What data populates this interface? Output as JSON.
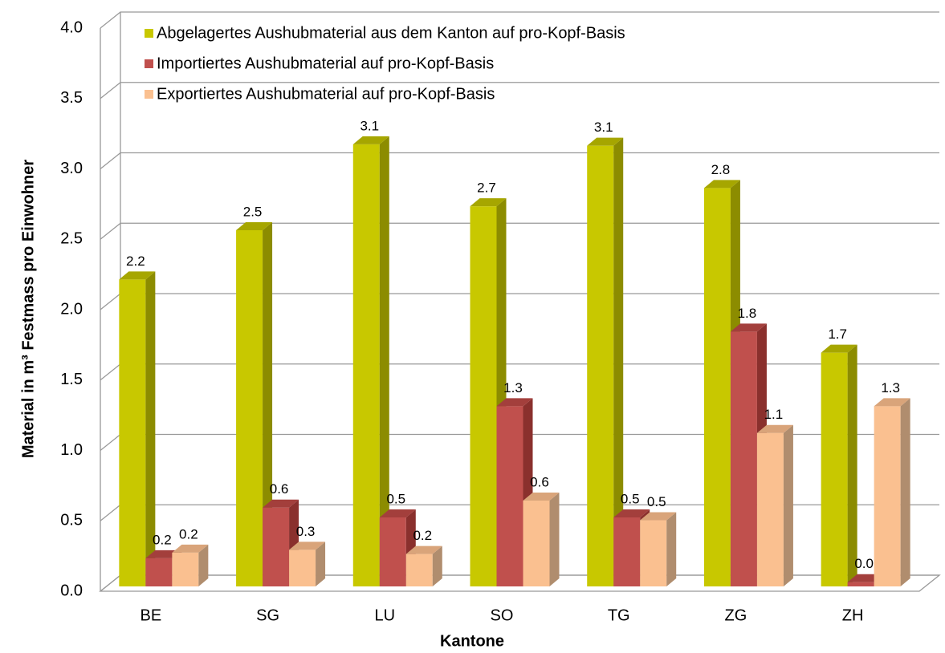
{
  "chart_data": {
    "type": "bar3d",
    "ylabel": "Material in m³ Festmass pro Einwohner",
    "xlabel": "Kantone",
    "categories": [
      "BE",
      "SG",
      "LU",
      "SO",
      "TG",
      "ZG",
      "ZH"
    ],
    "series": [
      {
        "name": "Abgelagertes Aushubmaterial aus dem Kanton auf pro-Kopf-Basis",
        "color": "#c8c800",
        "side": "#8c8c00",
        "top": "#a6a600",
        "values": [
          2.18,
          2.53,
          3.14,
          2.7,
          3.13,
          2.83,
          1.66
        ],
        "value_labels": [
          "2.2",
          "2.5",
          "3.1",
          "2.7",
          "3.1",
          "2.8",
          "1.7"
        ]
      },
      {
        "name": "Importiertes Aushubmaterial auf pro-Kopf-Basis",
        "color": "#c0504d",
        "side": "#8a302d",
        "top": "#a33f3c",
        "values": [
          0.2,
          0.56,
          0.49,
          1.28,
          0.49,
          1.81,
          0.03
        ],
        "value_labels": [
          "0.2",
          "0.6",
          "0.5",
          "1.3",
          "0.5",
          "1.8",
          "0.0"
        ]
      },
      {
        "name": "Exportiertes Aushubmaterial auf pro-Kopf-Basis",
        "color": "#fac090",
        "side": "#b08d6e",
        "top": "#d9a47a",
        "values": [
          0.24,
          0.26,
          0.23,
          0.61,
          0.47,
          1.09,
          1.28
        ],
        "value_labels": [
          "0.2",
          "0.3",
          "0.2",
          "0.6",
          "0.5",
          "1.1",
          "1.3"
        ]
      }
    ],
    "ylim": [
      0,
      4
    ],
    "yticks": [
      {
        "value": 0,
        "label": "0.0"
      },
      0.5,
      {
        "value": 1,
        "label": "1.0"
      },
      1.5,
      {
        "value": 2,
        "label": "2.0"
      },
      2.5,
      {
        "value": 3,
        "label": "3.0"
      },
      3.5,
      {
        "value": 4,
        "label": "4.0"
      }
    ],
    "grid": true,
    "legend": "top-left"
  }
}
